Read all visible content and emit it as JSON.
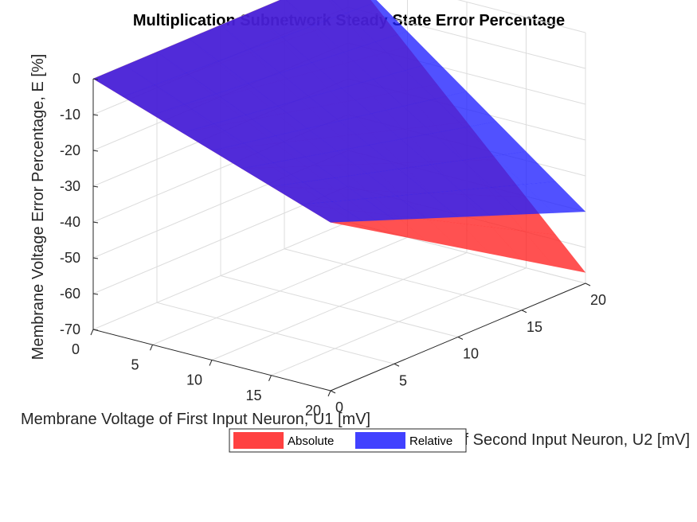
{
  "chart_data": {
    "type": "surface3d",
    "title": "Multiplication Subnetwork Steady State Error Percentage",
    "xlabel": "Membrane Voltage of First Input Neuron, U1 [mV]",
    "ylabel": "Membrane Voltage of Second Input Neuron, U2 [mV]",
    "zlabel": "Membrane Voltage Error Percentage, E [%]",
    "xlim": [
      0,
      20
    ],
    "ylim": [
      0,
      20
    ],
    "zlim": [
      -70,
      0
    ],
    "x_ticks": [
      "0",
      "5",
      "10",
      "15",
      "20"
    ],
    "y_ticks": [
      "0",
      "5",
      "10",
      "15",
      "20"
    ],
    "z_ticks": [
      "0",
      "-10",
      "-20",
      "-30",
      "-40",
      "-50",
      "-60",
      "-70"
    ],
    "grid": true,
    "legend_position": "bottom-center",
    "series": [
      {
        "name": "Absolute",
        "color": "#ff2020",
        "corners": {
          "u1_0_u2_0": 0,
          "u1_20_u2_0": -23,
          "u1_0_u2_20": 0,
          "u1_20_u2_20": -67
        }
      },
      {
        "name": "Relative",
        "color": "#2020ff",
        "corners": {
          "u1_0_u2_0": 0,
          "u1_20_u2_0": -23,
          "u1_0_u2_20": 0,
          "u1_20_u2_20": -50
        }
      }
    ]
  }
}
